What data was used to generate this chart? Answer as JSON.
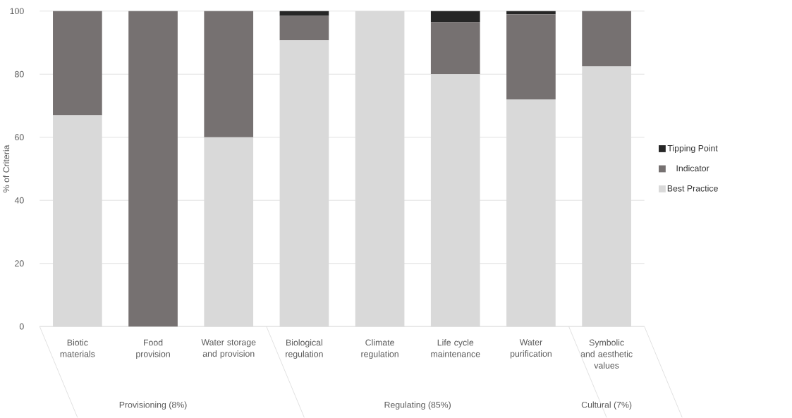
{
  "chart_data": {
    "type": "bar",
    "stacked": true,
    "ylabel": "% of Criteria",
    "categories": [
      "Biotic materials",
      "Food provision",
      "Water storage and provision",
      "Biological regulation",
      "Climate regulation",
      "Life cycle maintenance",
      "Water purification",
      "Symbolic and aesthetic values"
    ],
    "series": [
      {
        "name": "Best Practice",
        "color": "#d9d9d9",
        "values": [
          67,
          0,
          60,
          90.7,
          100,
          80,
          72,
          82.5
        ]
      },
      {
        "name": "Indicator",
        "color": "#767171",
        "values": [
          33,
          100,
          40,
          7.8,
          0,
          16.5,
          27,
          17.5
        ]
      },
      {
        "name": "Tipping Point",
        "color": "#262626",
        "values": [
          0,
          0,
          0,
          1.5,
          0,
          3.5,
          1,
          0
        ]
      }
    ],
    "ylim": [
      0,
      100
    ],
    "yticks": [
      0,
      20,
      40,
      60,
      80,
      100
    ],
    "grid": "y",
    "legend": "right",
    "annotations": [
      "Provisioning (8%)",
      "Regulating (85%)",
      "Cultural (7%)"
    ]
  }
}
